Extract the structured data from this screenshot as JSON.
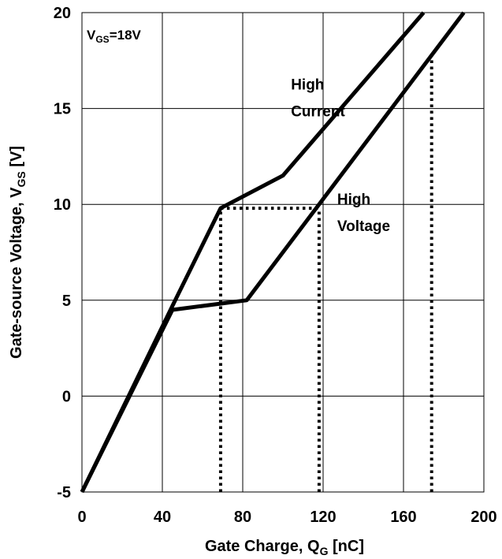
{
  "chart_data": {
    "type": "line",
    "title": "",
    "xlabel": "Gate Charge, Q",
    "xlabel_sub": "G",
    "xlabel_unit": " [nC]",
    "ylabel": "Gate-source Voltage, V",
    "ylabel_sub": "GS",
    "ylabel_unit": " [V]",
    "xlim": [
      0,
      200
    ],
    "ylim": [
      -5,
      20
    ],
    "x_ticks": [
      0,
      40,
      80,
      120,
      160,
      200
    ],
    "y_ticks": [
      -5,
      0,
      5,
      10,
      15,
      20
    ],
    "x_tick_labels": [
      "0",
      "40",
      "80",
      "120",
      "160",
      "200"
    ],
    "y_tick_labels": [
      "-5",
      "0",
      "5",
      "10",
      "15",
      "20"
    ],
    "grid": true,
    "series": [
      {
        "name": "High Current",
        "x": [
          0,
          45,
          69,
          100,
          170
        ],
        "y": [
          -5,
          4.7,
          9.8,
          11.5,
          20
        ],
        "color": "#000000"
      },
      {
        "name": "High Voltage",
        "x": [
          0,
          45,
          82,
          190
        ],
        "y": [
          -5,
          4.5,
          5,
          20
        ],
        "color": "#000000"
      }
    ],
    "reference_lines": [
      {
        "x": [
          69,
          69
        ],
        "y": [
          -5,
          9.8
        ]
      },
      {
        "x": [
          69,
          118
        ],
        "y": [
          9.8,
          9.8
        ]
      },
      {
        "x": [
          118,
          118
        ],
        "y": [
          -5,
          9.8
        ]
      },
      {
        "x": [
          174,
          174
        ],
        "y": [
          -5,
          17.7
        ]
      }
    ],
    "annotations": [
      {
        "lines": [
          "High",
          "Current"
        ],
        "x": 104,
        "y": 16
      },
      {
        "lines": [
          "High",
          "Voltage"
        ],
        "x": 127,
        "y": 10
      }
    ],
    "vgs_note": {
      "prefix": "V",
      "sub": "GS",
      "suffix": "=18V"
    }
  }
}
